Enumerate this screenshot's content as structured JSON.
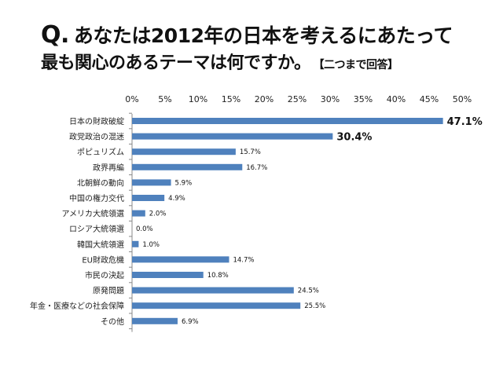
{
  "chart_data": {
    "type": "bar",
    "orientation": "horizontal",
    "title_prefix": "Q.",
    "title_line1": "あなたは2012年の日本を考えるにあたって",
    "title_line2": "最も関心のあるテーマは何ですか。",
    "title_note": "【二つまで回答】",
    "categories": [
      "日本の財政破綻",
      "政党政治の混迷",
      "ポピュリズム",
      "政界再編",
      "北朝鮮の動向",
      "中国の権力交代",
      "アメリカ大統領選",
      "ロシア大統領選",
      "韓国大統領選",
      "EU財政危機",
      "市民の決起",
      "原発問題",
      "年金・医療などの社会保障",
      "その他"
    ],
    "values": [
      47.1,
      30.4,
      15.7,
      16.7,
      5.9,
      4.9,
      2.0,
      0.0,
      1.0,
      14.7,
      10.8,
      24.5,
      25.5,
      6.9
    ],
    "data_labels": [
      "47.1%",
      "30.4%",
      "15.7%",
      "16.7%",
      "5.9%",
      "4.9%",
      "2.0%",
      "0.0%",
      "1.0%",
      "14.7%",
      "10.8%",
      "24.5%",
      "25.5%",
      "6.9%"
    ],
    "highlighted_labels": [
      0,
      1
    ],
    "xticks": [
      "0%",
      "5%",
      "10%",
      "15%",
      "20%",
      "25%",
      "30%",
      "35%",
      "40%",
      "45%",
      "50%"
    ],
    "xlim": [
      0,
      50
    ],
    "xaxis_position": "top",
    "grid": false,
    "bar_color": "#4f81bd"
  }
}
